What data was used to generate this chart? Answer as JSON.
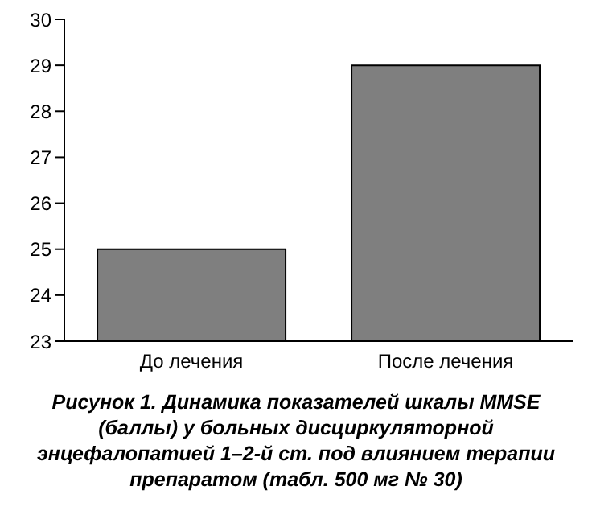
{
  "chart_data": {
    "type": "bar",
    "title": "Рисунок 1. Динамика показателей шкалы MMSE (баллы) у больных дисциркуляторной энцефалопатией 1–2-й ст. под влиянием терапии препаратом (табл. 500 мг № 30)",
    "categories": [
      "До лечения",
      "После лечения"
    ],
    "values": [
      25,
      29
    ],
    "color": "#7f7f7f",
    "ylim": [
      23,
      30
    ],
    "yticks": [
      23,
      24,
      25,
      26,
      27,
      28,
      29,
      30
    ],
    "grid": false,
    "legend": false
  }
}
